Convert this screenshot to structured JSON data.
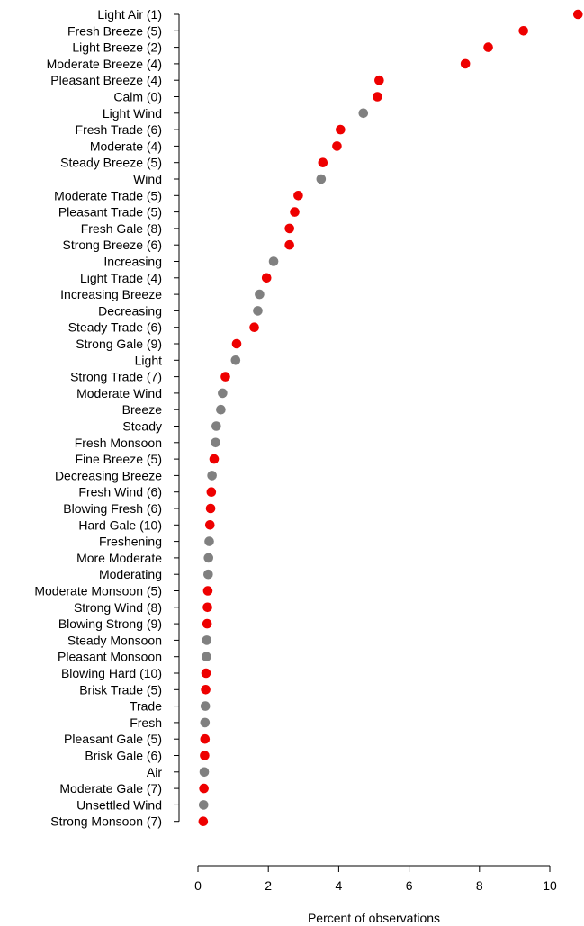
{
  "chart_data": {
    "type": "scatter",
    "xlabel": "Percent of observations",
    "xlim": [
      0,
      10
    ],
    "xticks": [
      0,
      2,
      4,
      6,
      8,
      10
    ],
    "colors": {
      "beaufort": "#ee0000",
      "other": "#808080"
    },
    "points": [
      {
        "label": "Light Air (1)",
        "value": 10.8,
        "beaufort": true
      },
      {
        "label": "Fresh Breeze (5)",
        "value": 9.25,
        "beaufort": true
      },
      {
        "label": "Light Breeze (2)",
        "value": 8.25,
        "beaufort": true
      },
      {
        "label": "Moderate Breeze (4)",
        "value": 7.6,
        "beaufort": true
      },
      {
        "label": "Pleasant Breeze (4)",
        "value": 5.15,
        "beaufort": true
      },
      {
        "label": "Calm (0)",
        "value": 5.1,
        "beaufort": true
      },
      {
        "label": "Light Wind",
        "value": 4.7,
        "beaufort": false
      },
      {
        "label": "Fresh Trade (6)",
        "value": 4.05,
        "beaufort": true
      },
      {
        "label": "Moderate (4)",
        "value": 3.95,
        "beaufort": true
      },
      {
        "label": "Steady Breeze (5)",
        "value": 3.55,
        "beaufort": true
      },
      {
        "label": "Wind",
        "value": 3.5,
        "beaufort": false
      },
      {
        "label": "Moderate Trade (5)",
        "value": 2.85,
        "beaufort": true
      },
      {
        "label": "Pleasant Trade (5)",
        "value": 2.75,
        "beaufort": true
      },
      {
        "label": "Fresh Gale (8)",
        "value": 2.6,
        "beaufort": true
      },
      {
        "label": "Strong Breeze (6)",
        "value": 2.6,
        "beaufort": true
      },
      {
        "label": "Increasing",
        "value": 2.15,
        "beaufort": false
      },
      {
        "label": "Light Trade (4)",
        "value": 1.95,
        "beaufort": true
      },
      {
        "label": "Increasing Breeze",
        "value": 1.75,
        "beaufort": false
      },
      {
        "label": "Decreasing",
        "value": 1.7,
        "beaufort": false
      },
      {
        "label": "Steady Trade (6)",
        "value": 1.6,
        "beaufort": true
      },
      {
        "label": "Strong Gale (9)",
        "value": 1.1,
        "beaufort": true
      },
      {
        "label": "Light",
        "value": 1.07,
        "beaufort": false
      },
      {
        "label": "Strong Trade (7)",
        "value": 0.78,
        "beaufort": true
      },
      {
        "label": "Moderate Wind",
        "value": 0.7,
        "beaufort": false
      },
      {
        "label": "Breeze",
        "value": 0.65,
        "beaufort": false
      },
      {
        "label": "Steady",
        "value": 0.52,
        "beaufort": false
      },
      {
        "label": "Fresh Monsoon",
        "value": 0.5,
        "beaufort": false
      },
      {
        "label": "Fine Breeze (5)",
        "value": 0.46,
        "beaufort": true
      },
      {
        "label": "Decreasing Breeze",
        "value": 0.4,
        "beaufort": false
      },
      {
        "label": "Fresh Wind (6)",
        "value": 0.38,
        "beaufort": true
      },
      {
        "label": "Blowing Fresh (6)",
        "value": 0.36,
        "beaufort": true
      },
      {
        "label": "Hard Gale (10)",
        "value": 0.34,
        "beaufort": true
      },
      {
        "label": "Freshening",
        "value": 0.32,
        "beaufort": false
      },
      {
        "label": "More Moderate",
        "value": 0.3,
        "beaufort": false
      },
      {
        "label": "Moderating",
        "value": 0.29,
        "beaufort": false
      },
      {
        "label": "Moderate Monsoon (5)",
        "value": 0.28,
        "beaufort": true
      },
      {
        "label": "Strong Wind (8)",
        "value": 0.27,
        "beaufort": true
      },
      {
        "label": "Blowing Strong (9)",
        "value": 0.26,
        "beaufort": true
      },
      {
        "label": "Steady Monsoon",
        "value": 0.25,
        "beaufort": false
      },
      {
        "label": "Pleasant Monsoon",
        "value": 0.24,
        "beaufort": false
      },
      {
        "label": "Blowing Hard (10)",
        "value": 0.23,
        "beaufort": true
      },
      {
        "label": "Brisk Trade (5)",
        "value": 0.22,
        "beaufort": true
      },
      {
        "label": "Trade",
        "value": 0.21,
        "beaufort": false
      },
      {
        "label": "Fresh",
        "value": 0.2,
        "beaufort": false
      },
      {
        "label": "Pleasant Gale (5)",
        "value": 0.2,
        "beaufort": true
      },
      {
        "label": "Brisk Gale (6)",
        "value": 0.19,
        "beaufort": true
      },
      {
        "label": "Air",
        "value": 0.18,
        "beaufort": false
      },
      {
        "label": "Moderate Gale (7)",
        "value": 0.17,
        "beaufort": true
      },
      {
        "label": "Unsettled Wind",
        "value": 0.16,
        "beaufort": false
      },
      {
        "label": "Strong Monsoon (7)",
        "value": 0.15,
        "beaufort": true
      }
    ]
  }
}
